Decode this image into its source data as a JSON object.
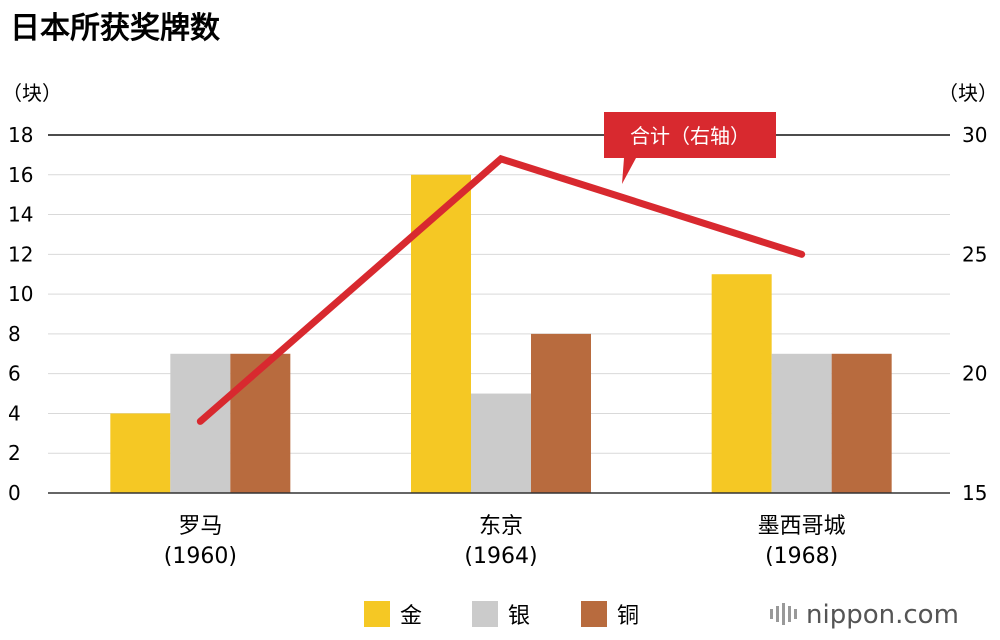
{
  "colors": {
    "gold": "#F5C824",
    "silver": "#CBCBCB",
    "bronze": "#B86B3E",
    "total": "#D8292F",
    "gridline": "#D9D9D9",
    "axis": "#333333",
    "brand": "#555555"
  },
  "brand": {
    "text": "nippon.com",
    "icon": "waveform-bars-icon"
  },
  "chart_data": {
    "type": "bar",
    "title": "日本所获奖牌数",
    "left_unit": "（块）",
    "right_unit": "（块）",
    "categories": [
      {
        "line1": "罗马",
        "line2": "(1960)"
      },
      {
        "line1": "东京",
        "line2": "(1964)"
      },
      {
        "line1": "墨西哥城",
        "line2": "(1968)"
      }
    ],
    "series": [
      {
        "name": "金",
        "color_key": "gold",
        "axis": "left",
        "values": [
          4,
          16,
          11
        ]
      },
      {
        "name": "银",
        "color_key": "silver",
        "axis": "left",
        "values": [
          7,
          5,
          7
        ]
      },
      {
        "name": "铜",
        "color_key": "bronze",
        "axis": "left",
        "values": [
          7,
          8,
          7
        ]
      },
      {
        "name": "合计（右轴）",
        "color_key": "total",
        "axis": "right",
        "type": "line",
        "values": [
          18,
          29,
          25
        ]
      }
    ],
    "y_left": {
      "min": 0,
      "max": 18,
      "ticks": [
        0,
        2,
        4,
        6,
        8,
        10,
        12,
        14,
        16,
        18
      ]
    },
    "y_right": {
      "min": 15,
      "max": 30,
      "ticks": [
        15,
        20,
        25,
        30
      ]
    },
    "legend": {
      "placement": "bottom",
      "items": [
        "金",
        "银",
        "铜"
      ]
    },
    "grid": true
  }
}
